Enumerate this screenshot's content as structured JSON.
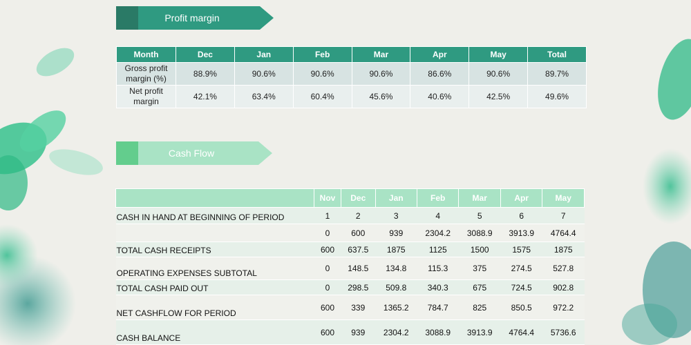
{
  "profit_section": {
    "title": "Profit margin",
    "headers": [
      "Month",
      "Dec",
      "Jan",
      "Feb",
      "Mar",
      "Apr",
      "May",
      "Total"
    ],
    "rows": [
      {
        "label": "Gross profit margin (%)",
        "values": [
          "88.9%",
          "90.6%",
          "90.6%",
          "90.6%",
          "86.6%",
          "90.6%",
          "89.7%"
        ]
      },
      {
        "label": "Net profit margin",
        "values": [
          "42.1%",
          "63.4%",
          "60.4%",
          "45.6%",
          "40.6%",
          "42.5%",
          "49.6%"
        ]
      }
    ]
  },
  "cash_section": {
    "title": "Cash Flow",
    "headers": [
      "",
      "Nov",
      "Dec",
      "Jan",
      "Feb",
      "Mar",
      "Apr",
      "May"
    ],
    "rows": [
      {
        "label": "CASH IN HAND AT BEGINNING OF PERIOD",
        "values": [
          "1",
          "2",
          "3",
          "4",
          "5",
          "6",
          "7"
        ]
      },
      {
        "label": "",
        "values": [
          "0",
          "600",
          "939",
          "2304.2",
          "3088.9",
          "3913.9",
          "4764.4"
        ]
      },
      {
        "label": "TOTAL CASH RECEIPTS",
        "values": [
          "600",
          "637.5",
          "1875",
          "1125",
          "1500",
          "1575",
          "1875"
        ]
      },
      {
        "label": "OPERATING EXPENSES SUBTOTAL",
        "values": [
          "0",
          "148.5",
          "134.8",
          "115.3",
          "375",
          "274.5",
          "527.8"
        ]
      },
      {
        "label": "TOTAL CASH PAID OUT",
        "values": [
          "0",
          "298.5",
          "509.8",
          "340.3",
          "675",
          "724.5",
          "902.8"
        ]
      },
      {
        "label": "NET CASHFLOW FOR PERIOD",
        "values": [
          "600",
          "339",
          "1365.2",
          "784.7",
          "825",
          "850.5",
          "972.2"
        ]
      },
      {
        "label": "CASH BALANCE",
        "values": [
          "600",
          "939",
          "2304.2",
          "3088.9",
          "3913.9",
          "4764.4",
          "5736.6"
        ]
      }
    ]
  },
  "colors": {
    "profit_banner": "#2f9a81",
    "cash_banner": "#a9e3c5",
    "accent_green": "#63cd8d"
  }
}
